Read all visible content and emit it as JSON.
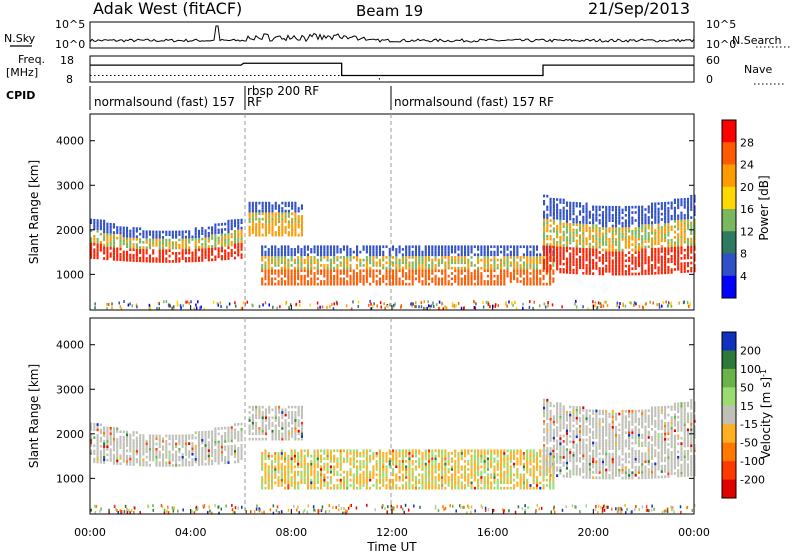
{
  "header": {
    "title": "Adak West (fitACF)",
    "beam": "Beam 19",
    "date": "21/Sep/2013"
  },
  "strips": {
    "nsky_label": "N.Sky",
    "nsearch_label": "N.Search",
    "freq_label": "Freq.",
    "freq_unit": "[MHz]",
    "nave_label": "Nave",
    "cpid_label": "CPID",
    "nsky_ticks": [
      "10^5",
      "10^0"
    ],
    "nsearch_ticks": [
      "10^5",
      "10^0"
    ],
    "freq_ticks": [
      "18",
      "8"
    ],
    "nave_ticks": [
      "60",
      "0"
    ],
    "cpid_segments": [
      {
        "start": 0.0,
        "label": "normalsound (fast) 157"
      },
      {
        "start": 6.0,
        "label": "RF"
      },
      {
        "start": 6.1,
        "label": "rbsp 200 RF"
      },
      {
        "start": 12.0,
        "label": "normalsound (fast) 157 RF"
      }
    ],
    "freq_steps": [
      {
        "t0": 0.0,
        "t1": 6.0,
        "f": 14.5
      },
      {
        "t0": 6.1,
        "t1": 10.0,
        "f": 15.2
      },
      {
        "t0": 10.0,
        "t1": 18.0,
        "f": 10.5
      },
      {
        "t0": 18.0,
        "t1": 24.0,
        "f": 14.5
      }
    ],
    "nave_steps": [
      {
        "t0": 0.0,
        "t1": 6.0,
        "n": 15
      },
      {
        "t0": 6.1,
        "t1": 10.0,
        "n": 15
      },
      {
        "t0": 10.0,
        "t1": 11.5,
        "n": 15
      },
      {
        "t0": 11.5,
        "t1": 24.0,
        "n": 0
      }
    ]
  },
  "panels": {
    "power_ylabel": "Slant Range [km]",
    "velocity_ylabel": "Slant Range [km]",
    "xlabel": "Time UT"
  },
  "chart_data": [
    {
      "type": "heatmap",
      "title": "",
      "quantity": "Power",
      "colorbar_label": "Power [dB]",
      "colorbar_ticks": [
        "28",
        "24",
        "20",
        "16",
        "12",
        "8",
        "4"
      ],
      "colorbar_colors": [
        "#ff0000",
        "#ff5a00",
        "#ff9a00",
        "#ffd800",
        "#7ab85e",
        "#2e7a60",
        "#3050c8",
        "#0000ff"
      ],
      "xlim": [
        0,
        24
      ],
      "ylim": [
        200,
        4600
      ],
      "x_ticks": [
        "00:00",
        "04:00",
        "08:00",
        "12:00",
        "16:00",
        "20:00",
        "00:00"
      ],
      "y_ticks": [
        1000,
        2000,
        3000,
        4000
      ],
      "scatter_regions": [
        {
          "t0": 0.0,
          "t1": 6.0,
          "r_lo": 1350,
          "r_hi": 2250,
          "dip": 300,
          "core": "#ff2000"
        },
        {
          "t0": 6.3,
          "t1": 8.5,
          "r_lo": 1850,
          "r_hi": 2600,
          "dip": 0,
          "core": "#ff9a00"
        },
        {
          "t0": 6.8,
          "t1": 18.5,
          "r_lo": 750,
          "r_hi": 1650,
          "dip": 0,
          "core": "#ff5a00"
        },
        {
          "t0": 18.0,
          "t1": 24.0,
          "r_lo": 1050,
          "r_hi": 2750,
          "dip": 250,
          "core": "#ff2000"
        }
      ]
    },
    {
      "type": "heatmap",
      "title": "",
      "quantity": "Velocity",
      "colorbar_label": "Velocity [m s^-1]",
      "colorbar_ticks": [
        "200",
        "100",
        "50",
        "15",
        "-15",
        "-50",
        "-100",
        "-200"
      ],
      "colorbar_colors": [
        "#1030c0",
        "#2b7a3a",
        "#6ab24a",
        "#9adc70",
        "#c0c0b8",
        "#ffb020",
        "#ff7800",
        "#ff3a00",
        "#e00000"
      ],
      "xlim": [
        0,
        24
      ],
      "ylim": [
        200,
        4600
      ],
      "x_ticks": [
        "00:00",
        "04:00",
        "08:00",
        "12:00",
        "16:00",
        "20:00",
        "00:00"
      ],
      "y_ticks": [
        1000,
        2000,
        3000,
        4000
      ],
      "scatter_regions": [
        {
          "t0": 0.0,
          "t1": 6.0,
          "r_lo": 1350,
          "r_hi": 2250,
          "dip": 300,
          "core": "#c0c0b8"
        },
        {
          "t0": 6.3,
          "t1": 8.5,
          "r_lo": 1850,
          "r_hi": 2600,
          "dip": 0,
          "core": "#c0c0b8"
        },
        {
          "t0": 6.8,
          "t1": 18.5,
          "r_lo": 750,
          "r_hi": 1650,
          "dip": 0,
          "core": "#ffb020"
        },
        {
          "t0": 18.0,
          "t1": 24.0,
          "r_lo": 1050,
          "r_hi": 2750,
          "dip": 250,
          "core": "#c0c0b8"
        }
      ]
    }
  ]
}
